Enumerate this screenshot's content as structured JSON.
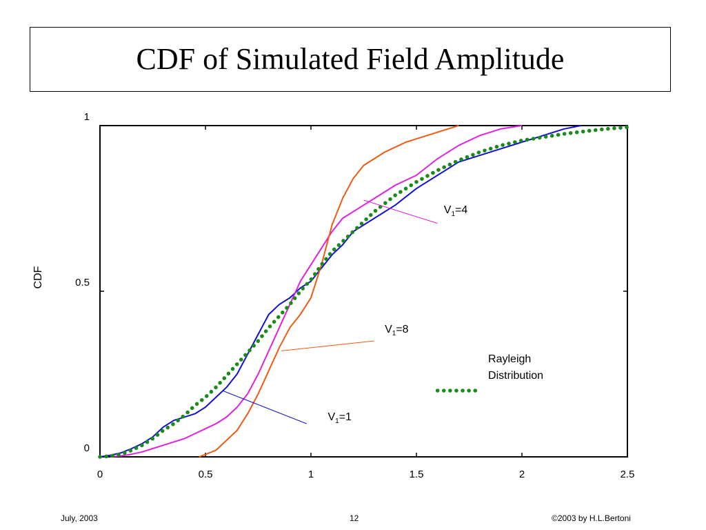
{
  "slide": {
    "title": "CDF of Simulated Field Amplitude",
    "footer_left": "July, 2003",
    "footer_center": "12",
    "footer_right": "©2003 by H.L.Bertoni"
  },
  "chart_data": {
    "type": "line",
    "title": "",
    "xlabel": "",
    "ylabel": "CDF",
    "xlim": [
      0,
      2.5
    ],
    "ylim": [
      0,
      1
    ],
    "xticks": [
      "0",
      "0.5",
      "1",
      "1.5",
      "2",
      "2.5"
    ],
    "yticks": [
      "0",
      "0.5",
      "1"
    ],
    "grid": false,
    "legend": "annotations inside plot",
    "series": [
      {
        "name": "V1=1",
        "color": "#1010d0",
        "style": "solid",
        "x": [
          0,
          0.05,
          0.1,
          0.15,
          0.2,
          0.25,
          0.3,
          0.35,
          0.4,
          0.45,
          0.5,
          0.55,
          0.6,
          0.65,
          0.7,
          0.75,
          0.8,
          0.85,
          0.9,
          0.95,
          1.0,
          1.05,
          1.1,
          1.15,
          1.2,
          1.3,
          1.4,
          1.5,
          1.6,
          1.7,
          1.8,
          1.9,
          2.0,
          2.1,
          2.2,
          2.28
        ],
        "y": [
          0,
          0.005,
          0.012,
          0.025,
          0.04,
          0.06,
          0.09,
          0.11,
          0.12,
          0.13,
          0.15,
          0.18,
          0.21,
          0.25,
          0.31,
          0.37,
          0.43,
          0.46,
          0.48,
          0.51,
          0.53,
          0.57,
          0.61,
          0.64,
          0.68,
          0.72,
          0.76,
          0.81,
          0.85,
          0.89,
          0.91,
          0.93,
          0.95,
          0.97,
          0.99,
          1.0
        ]
      },
      {
        "name": "V1=4",
        "color": "#e020e0",
        "style": "solid",
        "x": [
          0.05,
          0.1,
          0.15,
          0.2,
          0.25,
          0.3,
          0.35,
          0.4,
          0.45,
          0.5,
          0.55,
          0.6,
          0.65,
          0.7,
          0.75,
          0.8,
          0.85,
          0.9,
          0.95,
          1.0,
          1.05,
          1.1,
          1.15,
          1.2,
          1.25,
          1.3,
          1.35,
          1.4,
          1.5,
          1.6,
          1.7,
          1.8,
          1.9,
          2.0
        ],
        "y": [
          0,
          0.003,
          0.008,
          0.015,
          0.025,
          0.035,
          0.045,
          0.055,
          0.07,
          0.085,
          0.1,
          0.12,
          0.15,
          0.19,
          0.25,
          0.32,
          0.39,
          0.46,
          0.53,
          0.58,
          0.63,
          0.68,
          0.72,
          0.74,
          0.76,
          0.78,
          0.8,
          0.82,
          0.85,
          0.9,
          0.94,
          0.97,
          0.99,
          1.0
        ]
      },
      {
        "name": "V1=8",
        "color": "#f05a10",
        "style": "solid",
        "x": [
          0.47,
          0.55,
          0.6,
          0.65,
          0.7,
          0.75,
          0.8,
          0.85,
          0.9,
          0.95,
          1.0,
          1.05,
          1.1,
          1.15,
          1.2,
          1.25,
          1.3,
          1.35,
          1.4,
          1.45,
          1.5,
          1.55,
          1.6,
          1.65,
          1.7
        ],
        "y": [
          0,
          0.02,
          0.05,
          0.08,
          0.13,
          0.19,
          0.26,
          0.33,
          0.39,
          0.43,
          0.48,
          0.58,
          0.7,
          0.78,
          0.84,
          0.88,
          0.9,
          0.92,
          0.935,
          0.95,
          0.96,
          0.97,
          0.98,
          0.99,
          1.0
        ]
      },
      {
        "name": "Rayleigh Distribution",
        "color": "#1a8a1a",
        "style": "dotted",
        "x": [
          0,
          0.05,
          0.1,
          0.15,
          0.2,
          0.25,
          0.3,
          0.35,
          0.4,
          0.45,
          0.5,
          0.55,
          0.6,
          0.65,
          0.7,
          0.75,
          0.8,
          0.85,
          0.9,
          0.95,
          1.0,
          1.05,
          1.1,
          1.15,
          1.2,
          1.3,
          1.4,
          1.5,
          1.6,
          1.7,
          1.8,
          1.9,
          2.0,
          2.1,
          2.2,
          2.3,
          2.4,
          2.5
        ],
        "y": [
          0,
          0.002,
          0.008,
          0.02,
          0.035,
          0.055,
          0.08,
          0.1,
          0.125,
          0.155,
          0.18,
          0.21,
          0.245,
          0.28,
          0.315,
          0.35,
          0.39,
          0.425,
          0.46,
          0.5,
          0.535,
          0.58,
          0.62,
          0.65,
          0.68,
          0.74,
          0.79,
          0.83,
          0.865,
          0.895,
          0.92,
          0.94,
          0.955,
          0.965,
          0.975,
          0.983,
          0.99,
          0.995
        ]
      }
    ],
    "annotations": [
      {
        "label_main": "V",
        "label_sub": "1",
        "label_rest": "=4",
        "series": "V1=4",
        "color": "#e020e0",
        "text_x": 1.63,
        "text_y": 0.735,
        "line_from": [
          1.6,
          0.705
        ],
        "line_to": [
          1.25,
          0.775
        ]
      },
      {
        "label_main": "V",
        "label_sub": "1",
        "label_rest": "=8",
        "series": "V1=8",
        "color": "#f05a10",
        "text_x": 1.35,
        "text_y": 0.375,
        "line_from": [
          1.3,
          0.35
        ],
        "line_to": [
          0.86,
          0.32
        ]
      },
      {
        "label_main": "V",
        "label_sub": "1",
        "label_rest": "=1",
        "series": "V1=1",
        "color": "#1010d0",
        "text_x": 1.08,
        "text_y": 0.11,
        "line_from": [
          0.98,
          0.1
        ],
        "line_to": [
          0.58,
          0.2
        ]
      },
      {
        "label_line1": "Rayleigh",
        "label_line2": "Distribution",
        "series": "Rayleigh Distribution",
        "color": "#1a8a1a",
        "text_x": 1.84,
        "text_y": 0.285,
        "sample_x": [
          1.6,
          1.79
        ],
        "sample_y": 0.2
      }
    ]
  }
}
